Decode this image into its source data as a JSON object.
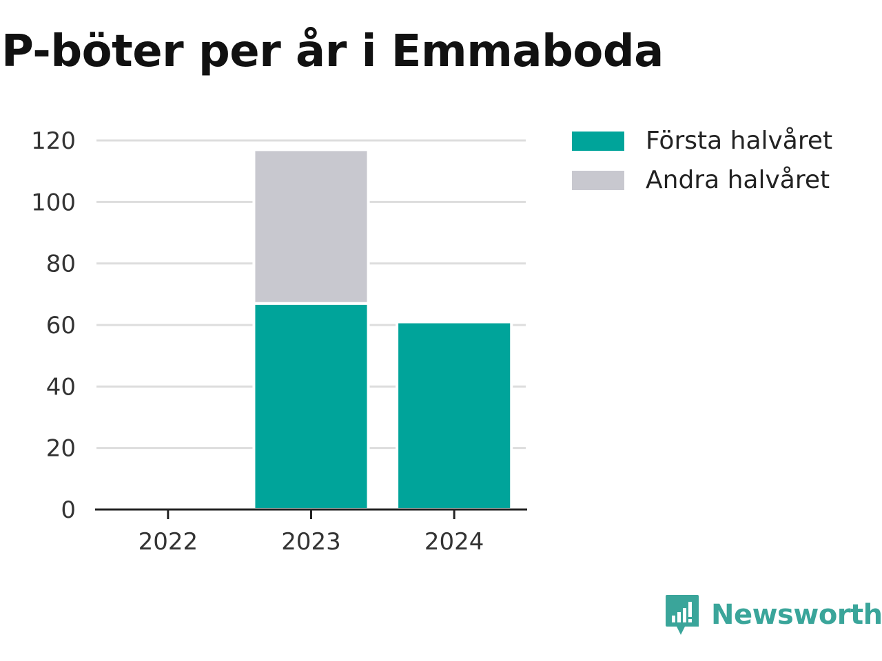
{
  "title": "P-böter per år i Emmaboda",
  "brand": "Newsworthy",
  "colors": {
    "first_half": "#00a49a",
    "second_half": "#c8c8cf",
    "brand": "#3aa59a",
    "grid": "#dddddd",
    "axis": "#222222"
  },
  "chart_data": {
    "type": "bar",
    "stacked": true,
    "title": "P-böter per år i Emmaboda",
    "categories": [
      "2022",
      "2023",
      "2024"
    ],
    "series": [
      {
        "name": "Första halvåret",
        "values": [
          0,
          67,
          61
        ]
      },
      {
        "name": "Andra halvåret",
        "values": [
          0,
          50,
          null
        ]
      }
    ],
    "yticks": [
      0,
      20,
      40,
      60,
      80,
      100,
      120
    ],
    "ylim": [
      0,
      120
    ],
    "grid": true,
    "legend_position": "right"
  }
}
